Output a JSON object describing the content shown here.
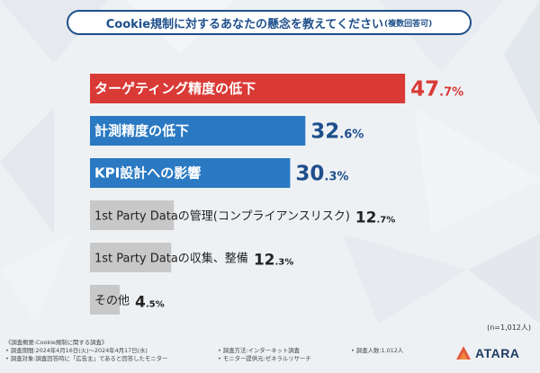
{
  "title": {
    "main": "Cookie規制に対するあなたの懸念を教えてください",
    "sub": "(複数回答可)"
  },
  "chart_data": {
    "type": "bar",
    "orientation": "horizontal",
    "categories": [
      "ターゲティング精度の低下",
      "計測精度の低下",
      "KPI設計への影響",
      "1st Party Dataの管理(コンプライアンスリスク)",
      "1st Party Dataの収集、整備",
      "その他"
    ],
    "label_inside": [
      true,
      true,
      true,
      false,
      false,
      false
    ],
    "values": [
      47.7,
      32.6,
      30.3,
      12.7,
      12.3,
      4.5
    ],
    "value_labels": [
      {
        "int": "47",
        "dec": ".7%"
      },
      {
        "int": "32",
        "dec": ".6%"
      },
      {
        "int": "30",
        "dec": ".3%"
      },
      {
        "int": "12",
        "dec": ".7%"
      },
      {
        "int": "12",
        "dec": ".3%"
      },
      {
        "int": "4",
        "dec": ".5%"
      }
    ],
    "bar_colors": [
      "#d93a36",
      "#2a79c2",
      "#2a79c2",
      "#c8c8c8",
      "#c8c8c8",
      "#c8c8c8"
    ],
    "value_colors": [
      "#d93a36",
      "#1e4f8c",
      "#1e4f8c",
      "#222222",
      "#222222",
      "#222222"
    ],
    "xlim": [
      0,
      50
    ]
  },
  "n_note": "(n=1,012人)",
  "footer": {
    "rows": [
      [
        "《調査概要:Cookie規制に関する調査》",
        "",
        ""
      ],
      [
        "• 調査期間:2024年4月16日(火)〜2024年4月17日(水)",
        "• 調査方法:インターネット調査",
        "• 調査人数:1,012人"
      ],
      [
        "• 調査対象:調査回答時に「広告主」であると回答したモニター",
        "• モニター提供元:ゼネラルリサーチ",
        ""
      ]
    ]
  },
  "logo": {
    "text": "ATARA"
  },
  "colors": {
    "accent_red": "#d93a36",
    "accent_blue": "#2a79c2",
    "title_blue": "#1e4f8c",
    "gray_bar": "#c8c8c8"
  }
}
